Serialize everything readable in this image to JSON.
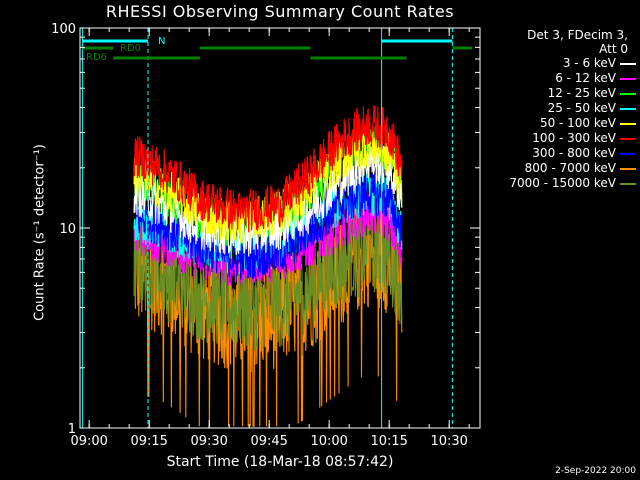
{
  "chart_data": {
    "type": "line",
    "title": "RHESSI Observing Summary Count Rates",
    "xlabel": "Start Time (18-Mar-18 08:57:42)",
    "ylabel": "Count Rate (s⁻¹ detector⁻¹)",
    "yscale": "log",
    "ylim": [
      1,
      100
    ],
    "xlim_minutes": [
      0,
      100
    ],
    "x_tick_labels": [
      "09:00",
      "09:15",
      "09:30",
      "09:45",
      "10:00",
      "10:15",
      "10:30"
    ],
    "x_tick_minutes": [
      2.3,
      17.3,
      32.3,
      47.3,
      62.3,
      77.3,
      92.3
    ],
    "y_tick_labels": [
      "1",
      "10",
      "100"
    ],
    "y_tick_values": [
      1,
      10,
      100
    ],
    "legend_header": [
      "Det 3, FDecim 3,",
      "Att 0"
    ],
    "series": [
      {
        "name": "3 - 6 keV",
        "color": "#ffffff",
        "x": [
          13.5,
          20,
          30,
          40,
          50,
          57,
          65,
          72,
          77,
          80.5
        ],
        "y": [
          15,
          13,
          10,
          9,
          10,
          12,
          17,
          22,
          20,
          14
        ]
      },
      {
        "name": "6 - 12 keV",
        "color": "#ff00ff",
        "x": [
          13.5,
          20,
          30,
          40,
          50,
          57,
          65,
          72,
          77,
          80.5
        ],
        "y": [
          9,
          8.5,
          7,
          6.5,
          7,
          8,
          10,
          12,
          11,
          7
        ]
      },
      {
        "name": "12 - 25 keV",
        "color": "#00ff00",
        "x": [
          13.5,
          20,
          30,
          40,
          50,
          57,
          65,
          72,
          77,
          80.5
        ],
        "y": [
          17,
          15,
          11,
          10,
          11,
          14,
          21,
          27,
          25,
          16
        ]
      },
      {
        "name": "25 - 50 keV",
        "color": "#00ffff",
        "x": [
          13.5,
          20,
          30,
          40,
          50,
          57,
          65,
          72,
          77,
          80.5
        ],
        "y": [
          11,
          10,
          8,
          7.5,
          8,
          10,
          13,
          15,
          14,
          9
        ]
      },
      {
        "name": "50 - 100 keV",
        "color": "#ffff00",
        "x": [
          13.5,
          20,
          30,
          40,
          50,
          57,
          65,
          72,
          77,
          80.5
        ],
        "y": [
          19,
          16,
          12,
          10.5,
          12,
          15,
          22,
          26,
          24,
          16
        ]
      },
      {
        "name": "100 - 300 keV",
        "color": "#ff0000",
        "x": [
          13.5,
          20,
          30,
          40,
          50,
          57,
          65,
          72,
          77,
          80.5
        ],
        "y": [
          23,
          20,
          14,
          12,
          13,
          18,
          27,
          33,
          31,
          20
        ]
      },
      {
        "name": "300 - 800 keV",
        "color": "#0000ff",
        "x": [
          13.5,
          20,
          30,
          40,
          50,
          57,
          65,
          72,
          77,
          80.5
        ],
        "y": [
          11.5,
          10.5,
          8,
          7,
          7.5,
          9.5,
          13,
          15,
          14,
          9.5
        ]
      },
      {
        "name": "800 - 7000 keV",
        "color": "#ff8c00",
        "x": [
          13.5,
          20,
          30,
          40,
          50,
          57,
          65,
          72,
          77,
          80.5
        ],
        "y": [
          6,
          5.5,
          4,
          3.5,
          3.7,
          4.5,
          6,
          7.5,
          7,
          4.5
        ]
      },
      {
        "name": "7000 - 15000 keV",
        "color": "#6b8e23",
        "x": [
          13.5,
          20,
          30,
          40,
          50,
          57,
          65,
          72,
          77,
          80.5
        ],
        "y": [
          6.5,
          6,
          4.5,
          4,
          4.2,
          5,
          6.5,
          8,
          7.5,
          5
        ]
      }
    ],
    "vertical_lines": [
      {
        "minute": 0.6,
        "color": "#00ffff",
        "style": "solid"
      },
      {
        "minute": 17.0,
        "color": "#00ffff",
        "style": "dashed"
      },
      {
        "minute": 75.4,
        "color": "#00ffff",
        "style": "solid"
      },
      {
        "minute": 93.1,
        "color": "#00ffff",
        "style": "dashed"
      }
    ],
    "state_bars": [
      {
        "label": "N",
        "color": "#00ffff",
        "segments": [
          [
            0.6,
            17.0
          ],
          [
            75.4,
            93.1
          ]
        ],
        "y_level": 1
      },
      {
        "label": "RD0",
        "color": "#008000",
        "segments": [
          [
            0.6,
            8.3
          ],
          [
            30.0,
            57.6
          ],
          [
            93.1,
            98.0
          ]
        ],
        "y_level": 2
      },
      {
        "label": "RD6",
        "color": "#008000",
        "segments": [
          [
            8.3,
            30.0
          ],
          [
            57.6,
            81.6
          ]
        ],
        "y_level": 3
      }
    ]
  },
  "footer_date": "2-Sep-2022 20:00"
}
